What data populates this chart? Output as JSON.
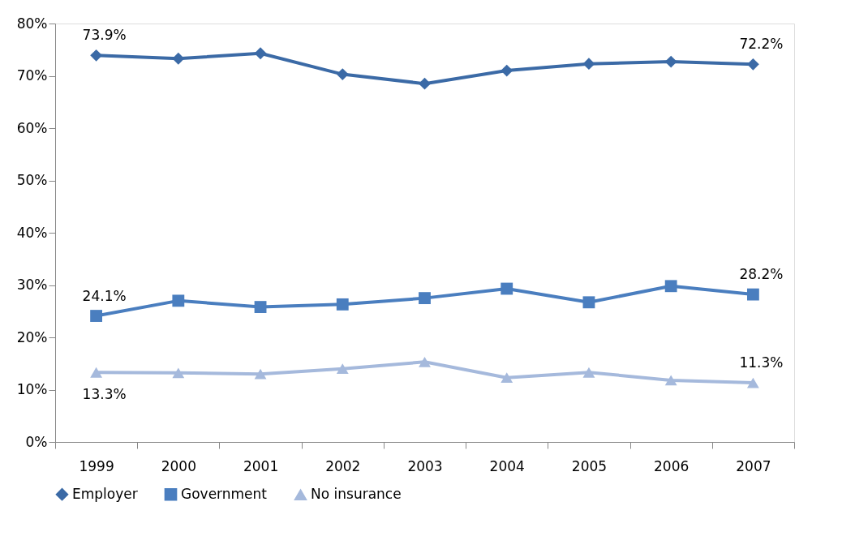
{
  "chart_data": {
    "type": "line",
    "categories": [
      "1999",
      "2000",
      "2001",
      "2002",
      "2003",
      "2004",
      "2005",
      "2006",
      "2007"
    ],
    "series": [
      {
        "name": "Employer",
        "color": "#3b6aa6",
        "marker": "diamond",
        "values": [
          73.9,
          73.3,
          74.3,
          70.3,
          68.5,
          71.0,
          72.3,
          72.7,
          72.2
        ],
        "value_labels": [
          "73.9%",
          null,
          null,
          null,
          null,
          null,
          null,
          null,
          "72.2%"
        ]
      },
      {
        "name": "Government",
        "color": "#4a7ebf",
        "marker": "square",
        "values": [
          24.1,
          27.0,
          25.8,
          26.3,
          27.5,
          29.3,
          26.7,
          29.8,
          28.2
        ],
        "value_labels": [
          "24.1%",
          null,
          null,
          null,
          null,
          null,
          null,
          null,
          "28.2%"
        ]
      },
      {
        "name": "No insurance",
        "color": "#a5b9dc",
        "marker": "triangle",
        "values": [
          13.3,
          13.2,
          13.0,
          14.0,
          15.3,
          12.3,
          13.3,
          11.8,
          11.3
        ],
        "value_labels": [
          "13.3%",
          null,
          null,
          null,
          null,
          null,
          null,
          null,
          "11.3%"
        ]
      }
    ],
    "ylim": [
      0,
      80
    ],
    "yticks": [
      {
        "value": 0,
        "label": "0%"
      },
      {
        "value": 10,
        "label": "10%"
      },
      {
        "value": 20,
        "label": "20%"
      },
      {
        "value": 30,
        "label": "30%"
      },
      {
        "value": 40,
        "label": "40%"
      },
      {
        "value": 50,
        "label": "50%"
      },
      {
        "value": 60,
        "label": "60%"
      },
      {
        "value": 70,
        "label": "70%"
      },
      {
        "value": 80,
        "label": "80%"
      }
    ],
    "grid": false,
    "legend": "bottom",
    "line_style": "solid"
  }
}
